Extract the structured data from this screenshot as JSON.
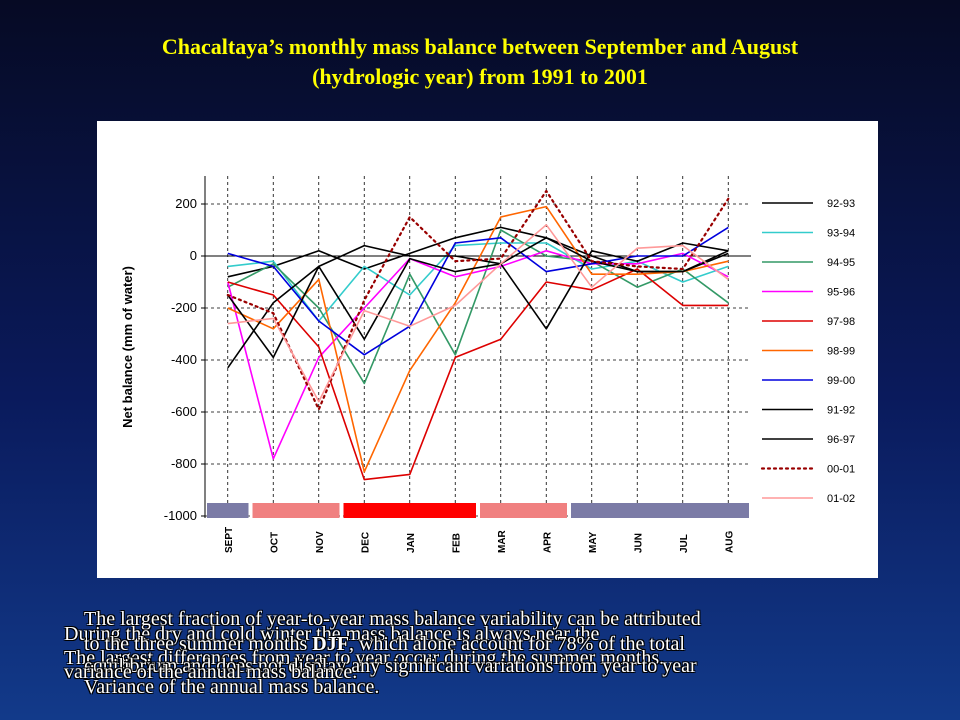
{
  "slide": {
    "title_line1": "Chacaltaya’s monthly mass balance between September and August",
    "title_line2": "(hydrologic year) from 1991 to 2001"
  },
  "captions": {
    "line1": "The largest fraction of year-to-year mass balance variability can be attributed",
    "line2": "During the dry and cold winter the mass balance is always near the",
    "line3": "to the three summer months DJF, which alone account for 78% of the total",
    "line4": "The largest differences from year to year occur during the summer months.",
    "line5": "equilibrium and does not display any significant variations from year to year",
    "line6": "variance of the annual mass balance.",
    "line7": "Variance of the annual mass balance."
  },
  "chart_data": {
    "type": "line",
    "title": "",
    "xlabel": "",
    "ylabel": "Net balance (mm of water)",
    "ylim": [
      -1000,
      300
    ],
    "yticks": [
      200,
      0,
      -200,
      -400,
      -600,
      -800,
      -1000
    ],
    "grid": "dashed",
    "categories": [
      "SEPT",
      "OCT",
      "NOV",
      "DEC",
      "JAN",
      "FEB",
      "MAR",
      "APR",
      "MAY",
      "JUN",
      "JUL",
      "AUG"
    ],
    "season_bands": [
      {
        "from": 0,
        "to": 0,
        "color": "#7b7ba6"
      },
      {
        "from": 1,
        "to": 2,
        "color": "#f08080"
      },
      {
        "from": 3,
        "to": 5,
        "color": "#ff0000"
      },
      {
        "from": 6,
        "to": 7,
        "color": "#f08080"
      },
      {
        "from": 8,
        "to": 11,
        "color": "#7b7ba6"
      }
    ],
    "legend_position": "right",
    "series": [
      {
        "name": "92-93",
        "color": "#000000",
        "dash": "solid",
        "values": [
          -80,
          -40,
          20,
          -50,
          10,
          70,
          110,
          70,
          0,
          -60,
          -60,
          20
        ]
      },
      {
        "name": "93-94",
        "color": "#33cccc",
        "dash": "solid",
        "values": [
          -40,
          -20,
          -250,
          -40,
          -150,
          40,
          50,
          50,
          -50,
          -20,
          -100,
          -40
        ]
      },
      {
        "name": "94-95",
        "color": "#339966",
        "dash": "solid",
        "values": [
          -120,
          -30,
          -200,
          -490,
          -70,
          -380,
          100,
          0,
          -20,
          -120,
          -50,
          -180
        ]
      },
      {
        "name": "95-96",
        "color": "#ff00ff",
        "dash": "solid",
        "values": [
          -100,
          -780,
          -390,
          -200,
          -10,
          -80,
          -40,
          20,
          -30,
          -30,
          10,
          -80
        ]
      },
      {
        "name": "97-98",
        "color": "#dd0000",
        "dash": "solid",
        "values": [
          -100,
          -150,
          -350,
          -860,
          -840,
          -390,
          -320,
          -100,
          -130,
          -50,
          -190,
          -190
        ]
      },
      {
        "name": "98-99",
        "color": "#ff6600",
        "dash": "solid",
        "values": [
          -200,
          -280,
          -90,
          -830,
          -440,
          -180,
          150,
          190,
          -70,
          -70,
          -60,
          -20
        ]
      },
      {
        "name": "99-00",
        "color": "#0000dd",
        "dash": "solid",
        "values": [
          10,
          -40,
          -250,
          -380,
          -270,
          50,
          70,
          -60,
          -30,
          0,
          0,
          110
        ]
      },
      {
        "name": "91-92",
        "color": "#000000",
        "dash": "solid",
        "values": [
          -430,
          -180,
          -40,
          40,
          0,
          0,
          -30,
          -280,
          20,
          -20,
          50,
          20
        ]
      },
      {
        "name": "96-97",
        "color": "#000000",
        "dash": "solid",
        "values": [
          -150,
          -390,
          -40,
          -320,
          -10,
          -60,
          -30,
          70,
          -20,
          -60,
          -60,
          10
        ]
      },
      {
        "name": "00-01",
        "color": "#990000",
        "dash": "dotted",
        "values": [
          -150,
          -220,
          -590,
          -170,
          150,
          -20,
          -10,
          250,
          -20,
          -40,
          -50,
          220
        ]
      },
      {
        "name": "01-02",
        "color": "#ff9999",
        "dash": "solid",
        "values": [
          -260,
          -240,
          -560,
          -210,
          -270,
          -190,
          -30,
          120,
          -120,
          30,
          40,
          -90
        ]
      }
    ]
  }
}
